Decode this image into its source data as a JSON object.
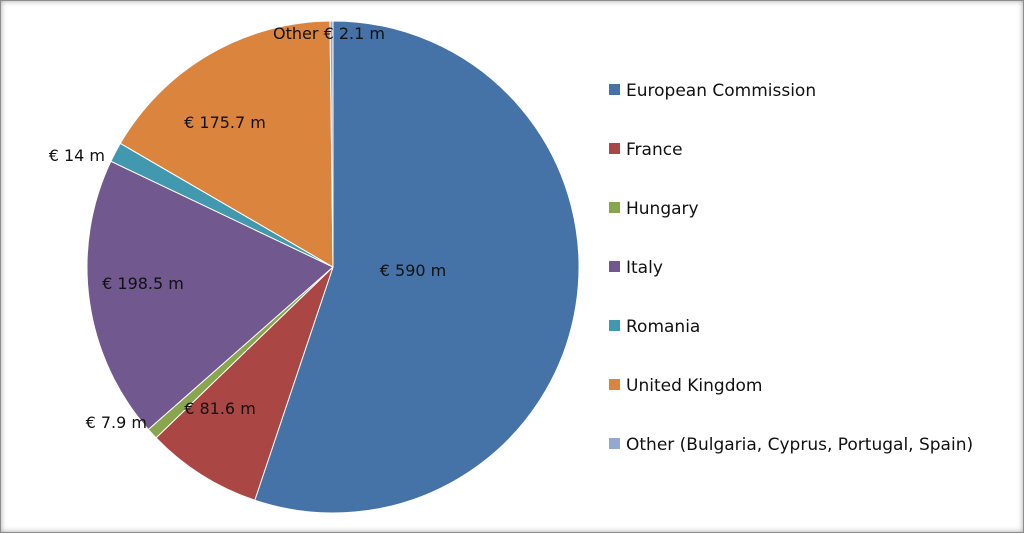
{
  "chart_data": {
    "type": "pie",
    "title": "",
    "slices": [
      {
        "name": "European Commission",
        "value": 590,
        "label": "€ 590 m",
        "color": "#4572A7"
      },
      {
        "name": "France",
        "value": 81.6,
        "label": "€ 81.6 m",
        "color": "#AA4643"
      },
      {
        "name": "Hungary",
        "value": 7.9,
        "label": "€ 7.9 m",
        "color": "#89A54E"
      },
      {
        "name": "Italy",
        "value": 198.5,
        "label": "€ 198.5 m",
        "color": "#71588F"
      },
      {
        "name": "Romania",
        "value": 14,
        "label": "€ 14 m",
        "color": "#4198AF"
      },
      {
        "name": "United Kingdom",
        "value": 175.7,
        "label": "€ 175.7 m",
        "color": "#DB843D"
      },
      {
        "name": "Other (Bulgaria, Cyprus, Portugal, Spain)",
        "value": 2.1,
        "label": "Other € 2.1 m",
        "color": "#93A9CF"
      }
    ],
    "legend_position": "right"
  }
}
